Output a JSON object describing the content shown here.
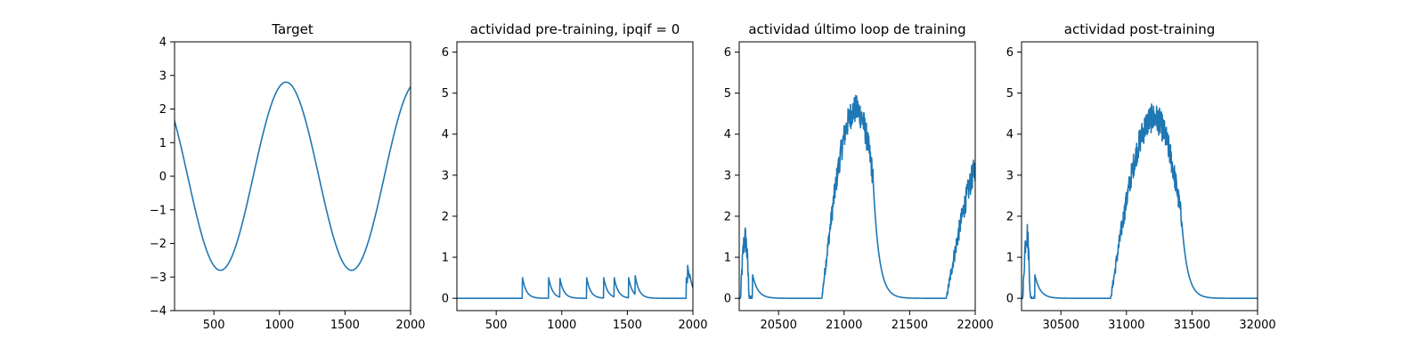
{
  "chart_data": [
    {
      "type": "line",
      "title": "Target",
      "xlim": [
        200,
        2000
      ],
      "ylim": [
        -4,
        4
      ],
      "xticks": [
        500,
        1000,
        1500,
        2000
      ],
      "yticks": [
        -4,
        -3,
        -2,
        -1,
        0,
        1,
        2,
        3,
        4
      ],
      "ytick_labels": [
        "−4",
        "−3",
        "−2",
        "−1",
        "0",
        "1",
        "2",
        "3",
        "4"
      ],
      "grid": false,
      "series": [
        {
          "kind": "sine",
          "amplitude": 2.8,
          "period": 1000,
          "peak_x": 1050,
          "x_start": 200,
          "x_end": 2000,
          "color": "#1f77b4"
        }
      ]
    },
    {
      "type": "line",
      "title": "actividad pre-training, ipqif = 0",
      "xlim": [
        200,
        2000
      ],
      "ylim": [
        -0.3,
        6.25
      ],
      "xticks": [
        500,
        1000,
        1500,
        2000
      ],
      "yticks": [
        0,
        1,
        2,
        3,
        4,
        5,
        6
      ],
      "grid": false,
      "series": [
        {
          "kind": "spikes",
          "baseline": 0,
          "decay": 30,
          "x_start": 200,
          "x_end": 2000,
          "spikes": [
            [
              700,
              0.5
            ],
            [
              900,
              0.5
            ],
            [
              985,
              0.5
            ],
            [
              1190,
              0.5
            ],
            [
              1320,
              0.5
            ],
            [
              1400,
              0.5
            ],
            [
              1510,
              0.5
            ],
            [
              1560,
              0.55
            ],
            [
              1950,
              0.5
            ],
            [
              1960,
              0.8
            ],
            [
              1975,
              0.6
            ]
          ],
          "color": "#1f77b4"
        }
      ]
    },
    {
      "type": "line",
      "title": "actividad último loop de training",
      "xlim": [
        20200,
        22000
      ],
      "ylim": [
        -0.3,
        6.25
      ],
      "xticks": [
        20500,
        21000,
        21500,
        22000
      ],
      "yticks": [
        0,
        1,
        2,
        3,
        4,
        5,
        6
      ],
      "grid": false,
      "series": [
        {
          "kind": "noisy_bumps",
          "x_start": 20200,
          "x_end": 22000,
          "noise": 0.22,
          "bumps": [
            {
              "on": 20210,
              "peak_x": 20245,
              "peak": 1.45,
              "off": 20300,
              "decay": 40
            },
            {
              "on": 20830,
              "peak_x": 21090,
              "peak": 4.6,
              "off": 21220,
              "decay": 45
            },
            {
              "on": 21780,
              "peak_x": 22100,
              "peak": 3.6,
              "off": 22200,
              "decay": 40
            }
          ],
          "color": "#1f77b4"
        }
      ]
    },
    {
      "type": "line",
      "title": "actividad post-training",
      "xlim": [
        30200,
        32000
      ],
      "ylim": [
        -0.3,
        6.25
      ],
      "xticks": [
        30500,
        31000,
        31500,
        32000
      ],
      "yticks": [
        0,
        1,
        2,
        3,
        4,
        5,
        6
      ],
      "grid": false,
      "series": [
        {
          "kind": "noisy_bumps",
          "x_start": 30200,
          "x_end": 32000,
          "noise": 0.22,
          "bumps": [
            {
              "on": 30210,
              "peak_x": 30240,
              "peak": 1.6,
              "off": 30300,
              "decay": 40
            },
            {
              "on": 30880,
              "peak_x": 31210,
              "peak": 4.4,
              "off": 31420,
              "decay": 45
            }
          ],
          "color": "#1f77b4"
        }
      ]
    }
  ]
}
